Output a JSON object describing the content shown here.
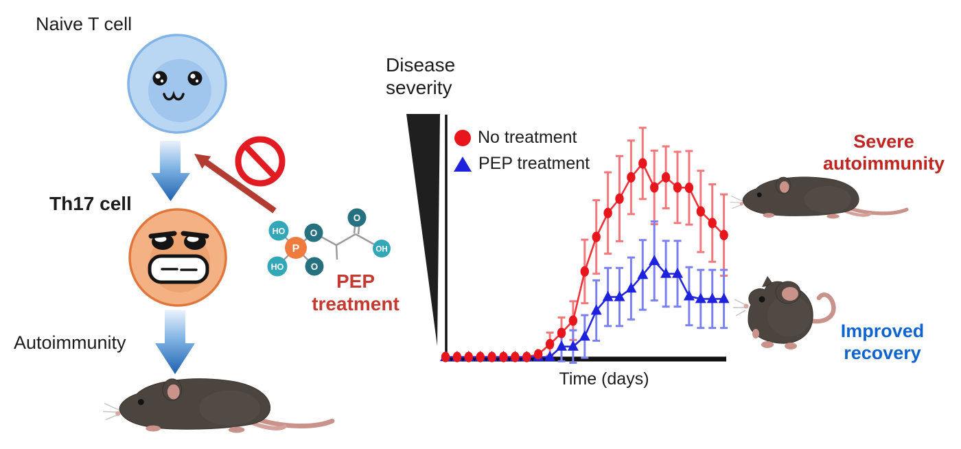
{
  "left_flow": {
    "naive_label": "Naive T cell",
    "th17_label": "Th17 cell",
    "autoimmunity_label": "Autoimmunity"
  },
  "treatment": {
    "line1": "PEP",
    "line2": "treatment",
    "molecule": {
      "ho_top": "HO",
      "ho_bottom": "HO",
      "p_label": "P",
      "o_bridge": "O",
      "o_double_p": "O",
      "o_carbonyl": "O",
      "oh_label": "OH"
    }
  },
  "chart": {
    "ylabel_line1": "Disease",
    "ylabel_line2": "severity",
    "xlabel": "Time (days)",
    "legend": [
      {
        "label": "No treatment",
        "color": "#e8151c",
        "marker": "circle"
      },
      {
        "label": "PEP treatment",
        "color": "#1e22dd",
        "marker": "triangle"
      }
    ]
  },
  "outcomes": {
    "severe_line1": "Severe",
    "severe_line2": "autoimmunity",
    "improved_line1": "Improved",
    "improved_line2": "recovery"
  },
  "palette": {
    "chart_red": "#e8151c",
    "chart_red_error": "#f4777b",
    "chart_blue": "#1e22dd",
    "chart_blue_error": "#7b80f0",
    "severe_text_red": "#bf2521",
    "improved_text_blue": "#1064cf",
    "pep_text_red": "#c43a31",
    "prohibition_red": "#e21b22",
    "inhibition_arrow_red": "#b23c32",
    "naive_cell_blue": "#b9d7f3",
    "th17_cell_orange": "#f4b183",
    "molecule_teal_light": "#31a7b8",
    "molecule_teal_dark": "#27707f",
    "molecule_orange": "#ef7b3f"
  },
  "chart_data": {
    "type": "line",
    "title": "",
    "xlabel": "Time (days)",
    "ylabel": "Disease severity",
    "x": [
      1,
      2,
      3,
      4,
      5,
      6,
      7,
      8,
      9,
      10,
      11,
      12,
      13,
      14,
      15,
      16,
      17,
      18,
      19,
      20,
      21,
      22,
      23,
      24,
      25
    ],
    "ylim": [
      0,
      5
    ],
    "axis_tick_labels": "none (schematic axes)",
    "grid": false,
    "legend_position": "top-left",
    "series": [
      {
        "name": "No treatment",
        "marker": "circle",
        "color": "#e8151c",
        "line_color": "#ed3237",
        "error_color": "#f4777b",
        "values": [
          0,
          0,
          0,
          0,
          0,
          0,
          0,
          0,
          0.07,
          0.33,
          0.62,
          0.94,
          2.21,
          3.1,
          3.72,
          4.09,
          4.64,
          5.0,
          4.38,
          4.64,
          4.38,
          4.37,
          3.76,
          3.46,
          3.15
        ],
        "errors": [
          0,
          0,
          0,
          0,
          0,
          0,
          0,
          0,
          0,
          0.3,
          0.4,
          0.5,
          0.82,
          0.95,
          1.05,
          1.1,
          0.95,
          0.92,
          0.95,
          0.8,
          0.92,
          0.95,
          1.05,
          1.0,
          1.05
        ]
      },
      {
        "name": "PEP treatment",
        "marker": "triangle",
        "color": "#1e22dd",
        "line_color": "#2126d9",
        "error_color": "#7b80f0",
        "values": [
          0,
          0,
          0,
          0,
          0,
          0,
          0,
          0,
          0,
          0,
          0.27,
          0.27,
          0.53,
          1.2,
          1.55,
          1.55,
          1.77,
          2.12,
          2.48,
          2.15,
          2.15,
          1.57,
          1.5,
          1.5,
          1.5
        ],
        "errors": [
          0,
          0,
          0,
          0,
          0,
          0,
          0,
          0,
          0,
          0,
          0.38,
          0.42,
          0.55,
          0.78,
          0.75,
          0.75,
          0.8,
          0.9,
          1.02,
          0.85,
          0.85,
          0.75,
          0.75,
          0.75,
          0.75
        ]
      }
    ]
  }
}
